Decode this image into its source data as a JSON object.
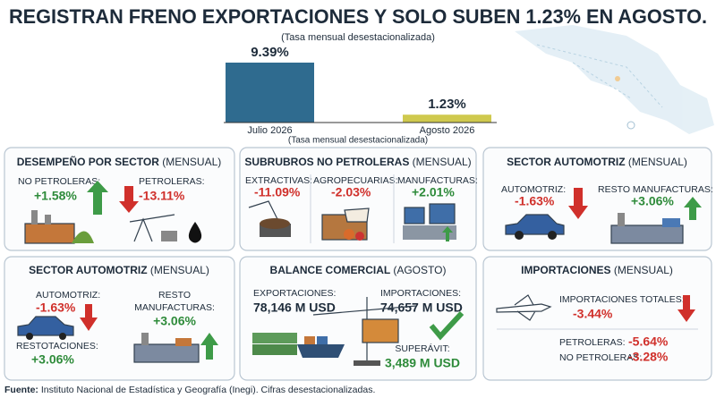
{
  "header": {
    "title": "REGISTRAN FRENO EXPORTACIONES Y SOLO SUBEN 1.23% EN AGOSTO."
  },
  "chart_data": {
    "type": "bar",
    "subtitle": "(Tasa mensual desestacionalizada)",
    "note": "(Tasa mensual desestacionalizada)",
    "categories": [
      "Julio 2026",
      "Agosto 2026"
    ],
    "values": [
      9.39,
      1.23
    ],
    "value_labels": [
      "9.39%",
      "1.23%"
    ],
    "colors": [
      "#2f6b8f",
      "#cfc94e"
    ]
  },
  "panels": [
    {
      "title": "DESEMPEÑO POR SECTOR",
      "title_note": "(MENSUAL)",
      "items": [
        {
          "label": "NO PETROLERAS:",
          "value": "+1.58%"
        },
        {
          "label": "PETROLERAS:",
          "value": "-13.11%"
        }
      ]
    },
    {
      "title": "SUBRUBROS NO PETROLERAS",
      "title_note": "(MENSUAL)",
      "items": [
        {
          "label": "EXTRACTIVAS:",
          "value": "-11.09%"
        },
        {
          "label": "AGROPECUARIAS:",
          "value": "-2.03%"
        },
        {
          "label": "MANUFACTURAS:",
          "value": "+2.01%"
        }
      ]
    },
    {
      "title": "SECTOR AUTOMOTRIZ",
      "title_note": "(MENSUAL)",
      "items": [
        {
          "label": "AUTOMOTRIZ:",
          "value": "-1.63%"
        },
        {
          "label": "RESTO MANUFACTURAS:",
          "value": "+3.06%"
        }
      ]
    },
    {
      "title": "SECTOR AUTOMOTRIZ",
      "title_note": "(MENSUAL)",
      "items": [
        {
          "label": "AUTOMOTRIZ:",
          "value": "-1.63%"
        },
        {
          "label": "RESTOTACIONES:",
          "value": "+3.06%"
        },
        {
          "label": [
            "RESTO",
            "MANUFACTURAS:"
          ],
          "value": "+3.06%"
        }
      ]
    },
    {
      "title": "BALANCE COMERCIAL",
      "title_note": "(AGOSTO)",
      "items": [
        {
          "label": "EXPORTACIONES:",
          "value": "78,146 M USD"
        },
        {
          "label": "IMPORTACIONES:",
          "value": "74,657 M USD"
        },
        {
          "label": "SUPERÁVIT:",
          "value": "3,489 M USD"
        }
      ]
    },
    {
      "title": "IMPORTACIONES",
      "title_note": "(MENSUAL)",
      "items": [
        {
          "label": "IMPORTACIONES TOTALES:",
          "value": "-3.44%"
        },
        {
          "label": "PETROLERAS:",
          "value": "-5.64%"
        },
        {
          "label": "NO PETROLERAS:",
          "value": "-3.28%"
        }
      ]
    }
  ],
  "footer": {
    "source_label": "Fuente:",
    "source": "Instituto Nacional de Estadística y Geografía (Inegi). Cifras desestacionalizadas."
  }
}
